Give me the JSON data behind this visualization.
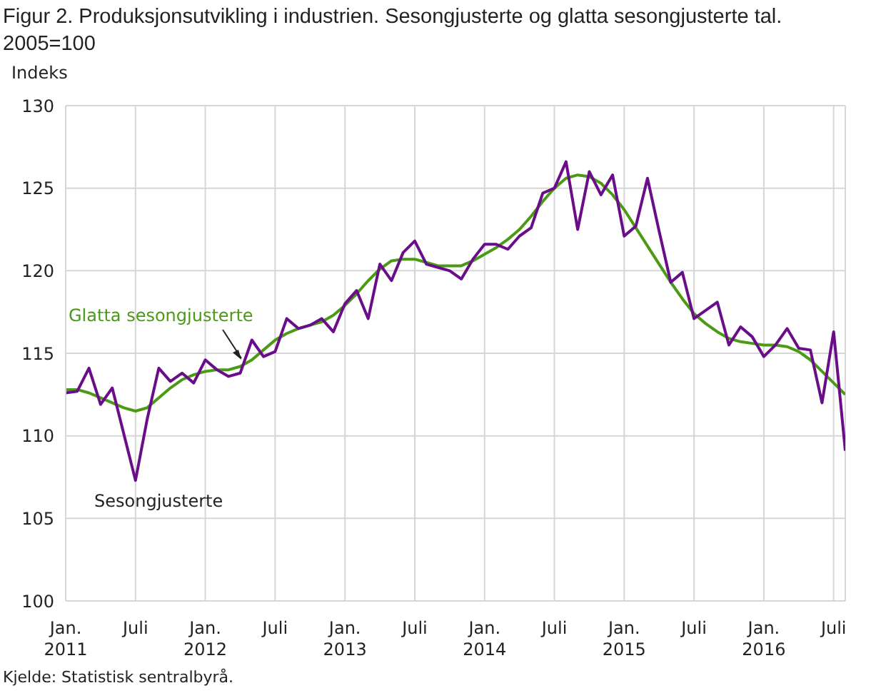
{
  "chart_data": {
    "type": "line",
    "title": "Figur 2. Produksjonsutvikling i industrien. Sesongjusterte og glatta sesongjusterte tal. 2005=100",
    "ylabel": "Indeks",
    "annotations": [
      "Kjelde: Statistisk sentralbyrå."
    ],
    "x": [
      "2011-01",
      "2011-02",
      "2011-03",
      "2011-04",
      "2011-05",
      "2011-06",
      "2011-07",
      "2011-08",
      "2011-09",
      "2011-10",
      "2011-11",
      "2011-12",
      "2012-01",
      "2012-02",
      "2012-03",
      "2012-04",
      "2012-05",
      "2012-06",
      "2012-07",
      "2012-08",
      "2012-09",
      "2012-10",
      "2012-11",
      "2012-12",
      "2013-01",
      "2013-02",
      "2013-03",
      "2013-04",
      "2013-05",
      "2013-06",
      "2013-07",
      "2013-08",
      "2013-09",
      "2013-10",
      "2013-11",
      "2013-12",
      "2014-01",
      "2014-02",
      "2014-03",
      "2014-04",
      "2014-05",
      "2014-06",
      "2014-07",
      "2014-08",
      "2014-09",
      "2014-10",
      "2014-11",
      "2014-12",
      "2015-01",
      "2015-02",
      "2015-03",
      "2015-04",
      "2015-05",
      "2015-06",
      "2015-07",
      "2015-08",
      "2015-09",
      "2015-10",
      "2015-11",
      "2015-12",
      "2016-01",
      "2016-02",
      "2016-03",
      "2016-04",
      "2016-05",
      "2016-06",
      "2016-07",
      "2016-08"
    ],
    "series": [
      {
        "name": "Glatta sesongjusterte",
        "color": "#4a9a14",
        "values": [
          112.8,
          112.8,
          112.6,
          112.3,
          112.0,
          111.7,
          111.5,
          111.7,
          112.3,
          112.9,
          113.4,
          113.7,
          113.9,
          114.0,
          114.0,
          114.2,
          114.6,
          115.2,
          115.8,
          116.2,
          116.5,
          116.7,
          116.9,
          117.3,
          117.9,
          118.6,
          119.4,
          120.1,
          120.6,
          120.7,
          120.7,
          120.5,
          120.3,
          120.3,
          120.3,
          120.6,
          121.0,
          121.4,
          121.9,
          122.5,
          123.3,
          124.2,
          125.0,
          125.6,
          125.8,
          125.7,
          125.3,
          124.6,
          123.7,
          122.6,
          121.5,
          120.4,
          119.3,
          118.3,
          117.4,
          116.8,
          116.3,
          115.9,
          115.7,
          115.6,
          115.5,
          115.5,
          115.4,
          115.1,
          114.6,
          113.9,
          113.2,
          112.5
        ]
      },
      {
        "name": "Sesongjusterte",
        "color": "#6a0d8a",
        "values": [
          112.6,
          112.7,
          114.1,
          111.9,
          112.9,
          110.1,
          107.3,
          111.0,
          114.1,
          113.3,
          113.8,
          113.2,
          114.6,
          114.0,
          113.6,
          113.8,
          115.8,
          114.8,
          115.1,
          117.1,
          116.5,
          116.7,
          117.1,
          116.3,
          118.0,
          118.8,
          117.1,
          120.4,
          119.4,
          121.1,
          121.8,
          120.4,
          120.2,
          120.0,
          119.5,
          120.7,
          121.6,
          121.6,
          121.3,
          122.1,
          122.6,
          124.7,
          125.0,
          126.6,
          122.5,
          126.0,
          124.6,
          125.8,
          122.1,
          122.7,
          125.6,
          122.4,
          119.3,
          119.9,
          117.1,
          117.6,
          118.1,
          115.5,
          116.6,
          116.0,
          114.8,
          115.5,
          116.5,
          115.3,
          115.2,
          112.0,
          116.3,
          109.1
        ]
      }
    ],
    "xlim": [
      "2011-01",
      "2016-08"
    ],
    "xticks": [
      {
        "value": "2011-01",
        "label": "Jan.\n2011"
      },
      {
        "value": "2011-07",
        "label": "Juli"
      },
      {
        "value": "2012-01",
        "label": "Jan.\n2012"
      },
      {
        "value": "2012-07",
        "label": "Juli"
      },
      {
        "value": "2013-01",
        "label": "Jan.\n2013"
      },
      {
        "value": "2013-07",
        "label": "Juli"
      },
      {
        "value": "2014-01",
        "label": "Jan.\n2014"
      },
      {
        "value": "2014-07",
        "label": "Juli"
      },
      {
        "value": "2015-01",
        "label": "Jan.\n2015"
      },
      {
        "value": "2015-07",
        "label": "Juli"
      },
      {
        "value": "2016-01",
        "label": "Jan.\n2016"
      },
      {
        "value": "2016-07",
        "label": "Juli"
      }
    ],
    "ylim": [
      100,
      130
    ],
    "yticks": [
      100,
      105,
      110,
      115,
      120,
      125,
      130
    ],
    "grid": true,
    "legend": false,
    "marker": "none",
    "line_style": "solid"
  }
}
